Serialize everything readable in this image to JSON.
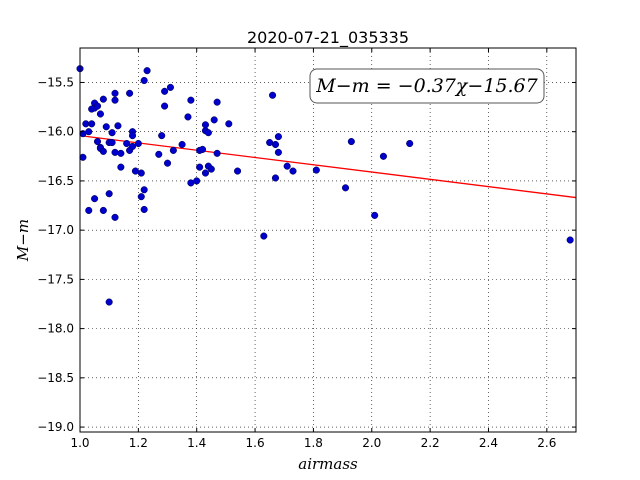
{
  "chart_data": {
    "type": "scatter",
    "title": "2020-07-21_035335",
    "xlabel": "airmass",
    "ylabel": "M−m",
    "annotation": "M−m = −0.37χ−15.67",
    "xlim": [
      1.0,
      2.7
    ],
    "ylim": [
      -19.05,
      -15.15
    ],
    "xticks": [
      1.0,
      1.2,
      1.4,
      1.6,
      1.8,
      2.0,
      2.2,
      2.4,
      2.6
    ],
    "xtick_labels": [
      "1.0",
      "1.2",
      "1.4",
      "1.6",
      "1.8",
      "2.0",
      "2.2",
      "2.4",
      "2.6"
    ],
    "yticks": [
      -15.5,
      -16.0,
      -16.5,
      -17.0,
      -17.5,
      -18.0,
      -18.5,
      -19.0
    ],
    "ytick_labels": [
      "−15.5",
      "−16.0",
      "−16.5",
      "−17.0",
      "−17.5",
      "−18.0",
      "−18.5",
      "−19.0"
    ],
    "grid": true,
    "fit": {
      "slope": -0.37,
      "intercept": -15.67,
      "color": "#ff0000"
    },
    "marker_color": "#0000cc",
    "points": [
      [
        1.0,
        -15.36
      ],
      [
        1.01,
        -16.02
      ],
      [
        1.01,
        -16.26
      ],
      [
        1.02,
        -15.92
      ],
      [
        1.03,
        -16.0
      ],
      [
        1.03,
        -16.8
      ],
      [
        1.04,
        -15.92
      ],
      [
        1.04,
        -15.77
      ],
      [
        1.05,
        -15.71
      ],
      [
        1.05,
        -15.76
      ],
      [
        1.05,
        -16.68
      ],
      [
        1.06,
        -15.74
      ],
      [
        1.06,
        -16.1
      ],
      [
        1.07,
        -15.82
      ],
      [
        1.07,
        -16.16
      ],
      [
        1.07,
        -16.17
      ],
      [
        1.08,
        -15.67
      ],
      [
        1.08,
        -16.2
      ],
      [
        1.08,
        -16.8
      ],
      [
        1.09,
        -15.95
      ],
      [
        1.1,
        -16.11
      ],
      [
        1.1,
        -16.63
      ],
      [
        1.1,
        -17.73
      ],
      [
        1.11,
        -16.11
      ],
      [
        1.11,
        -16.01
      ],
      [
        1.12,
        -15.61
      ],
      [
        1.12,
        -15.68
      ],
      [
        1.12,
        -16.21
      ],
      [
        1.12,
        -16.87
      ],
      [
        1.13,
        -15.94
      ],
      [
        1.14,
        -16.36
      ],
      [
        1.14,
        -16.22
      ],
      [
        1.16,
        -16.12
      ],
      [
        1.17,
        -15.61
      ],
      [
        1.17,
        -16.19
      ],
      [
        1.18,
        -16.15
      ],
      [
        1.18,
        -16.0
      ],
      [
        1.18,
        -16.04
      ],
      [
        1.19,
        -16.4
      ],
      [
        1.2,
        -16.12
      ],
      [
        1.21,
        -16.42
      ],
      [
        1.21,
        -16.66
      ],
      [
        1.22,
        -16.79
      ],
      [
        1.22,
        -16.59
      ],
      [
        1.22,
        -15.48
      ],
      [
        1.23,
        -15.38
      ],
      [
        1.27,
        -16.23
      ],
      [
        1.28,
        -16.04
      ],
      [
        1.29,
        -15.59
      ],
      [
        1.29,
        -15.74
      ],
      [
        1.3,
        -16.32
      ],
      [
        1.31,
        -15.55
      ],
      [
        1.32,
        -16.19
      ],
      [
        1.35,
        -16.13
      ],
      [
        1.37,
        -15.85
      ],
      [
        1.38,
        -15.68
      ],
      [
        1.38,
        -16.52
      ],
      [
        1.4,
        -16.5
      ],
      [
        1.41,
        -16.36
      ],
      [
        1.41,
        -16.19
      ],
      [
        1.42,
        -16.18
      ],
      [
        1.43,
        -15.99
      ],
      [
        1.43,
        -15.93
      ],
      [
        1.43,
        -16.42
      ],
      [
        1.44,
        -16.35
      ],
      [
        1.44,
        -16.01
      ],
      [
        1.45,
        -16.38
      ],
      [
        1.46,
        -15.88
      ],
      [
        1.47,
        -15.7
      ],
      [
        1.47,
        -16.22
      ],
      [
        1.51,
        -15.92
      ],
      [
        1.54,
        -16.4
      ],
      [
        1.63,
        -17.06
      ],
      [
        1.65,
        -16.11
      ],
      [
        1.66,
        -15.63
      ],
      [
        1.67,
        -16.13
      ],
      [
        1.67,
        -16.47
      ],
      [
        1.68,
        -16.05
      ],
      [
        1.68,
        -16.21
      ],
      [
        1.71,
        -16.35
      ],
      [
        1.73,
        -16.4
      ],
      [
        1.81,
        -16.39
      ],
      [
        1.91,
        -16.57
      ],
      [
        1.93,
        -16.1
      ],
      [
        2.01,
        -16.85
      ],
      [
        2.04,
        -16.25
      ],
      [
        2.13,
        -16.12
      ],
      [
        2.68,
        -17.1
      ]
    ]
  }
}
